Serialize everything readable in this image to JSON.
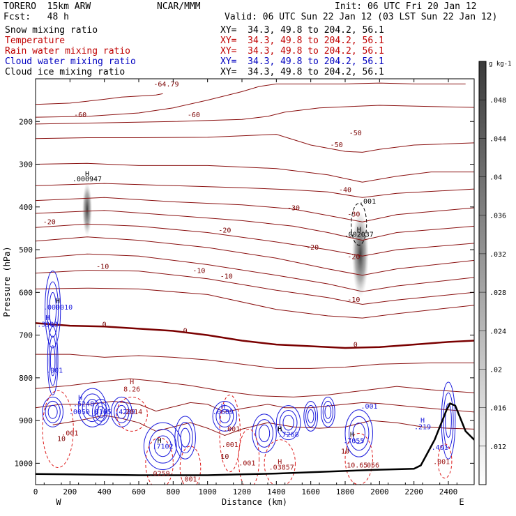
{
  "header": {
    "model": "TORERO  15km ARW",
    "forecast": "Fcst:   48 h",
    "center": "NCAR/MMM",
    "init": "Init: 06 UTC Fri 20 Jan 12",
    "valid": "Valid: 06 UTC Sun 22 Jan 12 (03 LST Sun 22 Jan 12)"
  },
  "fields": [
    {
      "name": "Snow mixing ratio",
      "color": "#000000",
      "xy": "XY=  34.3, 49.8 to 204.2, 56.1"
    },
    {
      "name": "Temperature",
      "color": "#c00000",
      "xy": "XY=  34.3, 49.8 to 204.2, 56.1"
    },
    {
      "name": "Rain water mixing ratio",
      "color": "#c00000",
      "xy": "XY=  34.3, 49.8 to 204.2, 56.1"
    },
    {
      "name": "Cloud water mixing ratio",
      "color": "#0000c0",
      "xy": "XY=  34.3, 49.8 to 204.2, 56.1"
    },
    {
      "name": "Cloud ice mixing ratio",
      "color": "#000000",
      "xy": "XY=  34.3, 49.8 to 204.2, 56.1"
    }
  ],
  "chart_data": {
    "type": "contour",
    "title": "",
    "xlabel": "Distance (km)",
    "ylabel": "Pressure (hPa)",
    "xlim": [
      0,
      2550
    ],
    "ylim": [
      1050,
      100
    ],
    "x_ticks": [
      0,
      200,
      400,
      600,
      800,
      1000,
      1200,
      1400,
      1600,
      1800,
      2000,
      2200,
      2400
    ],
    "y_ticks": [
      200,
      300,
      400,
      500,
      600,
      700,
      800,
      900,
      1000
    ],
    "west_label": "W",
    "east_label": "E",
    "colorbar": {
      "unit": "g kg-1",
      "ticks": [
        ".012",
        ".016",
        ".02",
        ".024",
        ".028",
        ".032",
        ".036",
        ".04",
        ".044",
        ".048"
      ]
    },
    "temperature_labels": [
      {
        "text": "-64.79",
        "x": 760,
        "p": 118
      },
      {
        "text": "-60",
        "x": 260,
        "p": 190
      },
      {
        "text": "-60",
        "x": 920,
        "p": 190
      },
      {
        "text": "-50",
        "x": 1860,
        "p": 232
      },
      {
        "text": "-50",
        "x": 1750,
        "p": 260
      },
      {
        "text": "-40",
        "x": 1800,
        "p": 365
      },
      {
        "text": "-30",
        "x": 1500,
        "p": 408
      },
      {
        "text": "-30",
        "x": 1850,
        "p": 422
      },
      {
        "text": "-20",
        "x": 80,
        "p": 440
      },
      {
        "text": "-20",
        "x": 1100,
        "p": 460
      },
      {
        "text": "-20",
        "x": 1610,
        "p": 500
      },
      {
        "text": "-20",
        "x": 1850,
        "p": 522
      },
      {
        "text": "-10",
        "x": 390,
        "p": 545
      },
      {
        "text": "-10",
        "x": 950,
        "p": 555
      },
      {
        "text": "-10",
        "x": 1110,
        "p": 568
      },
      {
        "text": "-10",
        "x": 1850,
        "p": 622
      },
      {
        "text": "0",
        "x": 400,
        "p": 680
      },
      {
        "text": "0",
        "x": 870,
        "p": 695
      },
      {
        "text": "0",
        "x": 1860,
        "p": 728
      },
      {
        "text": "10",
        "x": 150,
        "p": 948
      },
      {
        "text": "10",
        "x": 1100,
        "p": 990
      },
      {
        "text": "10",
        "x": 1800,
        "p": 977
      }
    ],
    "temperature_isotherms": [
      {
        "level": -60,
        "points": [
          [
            0,
            190
          ],
          [
            300,
            188
          ],
          [
            600,
            180
          ],
          [
            800,
            168
          ],
          [
            1000,
            150
          ],
          [
            1200,
            130
          ],
          [
            1300,
            118
          ],
          [
            1400,
            112
          ],
          [
            1600,
            112
          ],
          [
            1800,
            112
          ],
          [
            2000,
            110
          ],
          [
            2200,
            112
          ],
          [
            2500,
            112
          ]
        ]
      },
      {
        "level": -60,
        "points": [
          [
            0,
            160
          ],
          [
            200,
            157
          ],
          [
            400,
            148
          ],
          [
            500,
            143
          ],
          [
            620,
            140
          ],
          [
            700,
            138
          ],
          [
            740,
            135
          ]
        ]
      },
      {
        "level": -50,
        "points": [
          [
            0,
            206
          ],
          [
            400,
            203
          ],
          [
            800,
            200
          ],
          [
            1200,
            195
          ],
          [
            1350,
            188
          ],
          [
            1450,
            178
          ],
          [
            1650,
            168
          ],
          [
            2000,
            162
          ],
          [
            2300,
            165
          ],
          [
            2550,
            167
          ]
        ]
      },
      {
        "level": -50,
        "points": [
          [
            0,
            240
          ],
          [
            300,
            238
          ],
          [
            600,
            238
          ],
          [
            1000,
            237
          ],
          [
            1400,
            230
          ],
          [
            1600,
            255
          ],
          [
            1800,
            270
          ],
          [
            1900,
            272
          ],
          [
            2000,
            265
          ],
          [
            2200,
            255
          ],
          [
            2550,
            250
          ]
        ]
      },
      {
        "level": -40,
        "points": [
          [
            0,
            300
          ],
          [
            300,
            298
          ],
          [
            600,
            303
          ],
          [
            1000,
            303
          ],
          [
            1400,
            310
          ],
          [
            1700,
            325
          ],
          [
            1900,
            342
          ],
          [
            2100,
            328
          ],
          [
            2300,
            318
          ],
          [
            2550,
            318
          ]
        ]
      },
      {
        "level": -40,
        "points": [
          [
            0,
            350
          ],
          [
            400,
            345
          ],
          [
            800,
            350
          ],
          [
            1200,
            355
          ],
          [
            1500,
            360
          ],
          [
            1700,
            365
          ],
          [
            1900,
            378
          ],
          [
            2100,
            368
          ],
          [
            2550,
            358
          ]
        ]
      },
      {
        "level": -30,
        "points": [
          [
            0,
            385
          ],
          [
            400,
            378
          ],
          [
            800,
            388
          ],
          [
            1200,
            395
          ],
          [
            1500,
            405
          ],
          [
            1700,
            420
          ],
          [
            1900,
            435
          ],
          [
            2100,
            418
          ],
          [
            2550,
            402
          ]
        ]
      },
      {
        "level": -30,
        "points": [
          [
            0,
            415
          ],
          [
            400,
            408
          ],
          [
            800,
            420
          ],
          [
            1200,
            432
          ],
          [
            1500,
            445
          ],
          [
            1700,
            460
          ],
          [
            1900,
            478
          ],
          [
            2100,
            460
          ],
          [
            2550,
            445
          ]
        ]
      },
      {
        "level": -20,
        "points": [
          [
            0,
            448
          ],
          [
            300,
            440
          ],
          [
            600,
            445
          ],
          [
            1000,
            460
          ],
          [
            1400,
            482
          ],
          [
            1700,
            500
          ],
          [
            1900,
            515
          ],
          [
            2100,
            500
          ],
          [
            2550,
            485
          ]
        ]
      },
      {
        "level": -20,
        "points": [
          [
            0,
            480
          ],
          [
            300,
            470
          ],
          [
            600,
            478
          ],
          [
            1000,
            495
          ],
          [
            1400,
            520
          ],
          [
            1700,
            545
          ],
          [
            1900,
            560
          ],
          [
            2100,
            545
          ],
          [
            2550,
            525
          ]
        ]
      },
      {
        "level": -10,
        "points": [
          [
            0,
            520
          ],
          [
            300,
            510
          ],
          [
            600,
            515
          ],
          [
            1000,
            535
          ],
          [
            1400,
            560
          ],
          [
            1700,
            580
          ],
          [
            1900,
            598
          ],
          [
            2100,
            585
          ],
          [
            2550,
            565
          ]
        ]
      },
      {
        "level": -10,
        "points": [
          [
            0,
            555
          ],
          [
            300,
            548
          ],
          [
            600,
            550
          ],
          [
            1000,
            568
          ],
          [
            1400,
            595
          ],
          [
            1700,
            612
          ],
          [
            1900,
            628
          ],
          [
            2100,
            618
          ],
          [
            2550,
            600
          ]
        ]
      },
      {
        "level": -10,
        "points": [
          [
            0,
            592
          ],
          [
            300,
            590
          ],
          [
            600,
            592
          ],
          [
            1000,
            605
          ],
          [
            1400,
            640
          ],
          [
            1700,
            655
          ],
          [
            1900,
            660
          ],
          [
            2100,
            650
          ],
          [
            2550,
            630
          ]
        ]
      },
      {
        "level": 0,
        "points": [
          [
            0,
            672
          ],
          [
            200,
            678
          ],
          [
            400,
            680
          ],
          [
            600,
            685
          ],
          [
            800,
            690
          ],
          [
            1000,
            700
          ],
          [
            1200,
            713
          ],
          [
            1400,
            722
          ],
          [
            1600,
            726
          ],
          [
            1800,
            730
          ],
          [
            2000,
            728
          ],
          [
            2200,
            722
          ],
          [
            2400,
            716
          ],
          [
            2550,
            713
          ]
        ]
      },
      {
        "level": 5,
        "points": [
          [
            0,
            745
          ],
          [
            200,
            745
          ],
          [
            400,
            752
          ],
          [
            600,
            748
          ],
          [
            800,
            752
          ],
          [
            1000,
            758
          ],
          [
            1200,
            768
          ],
          [
            1400,
            778
          ],
          [
            1600,
            778
          ],
          [
            1800,
            775
          ],
          [
            2000,
            768
          ],
          [
            2300,
            765
          ],
          [
            2550,
            765
          ]
        ]
      },
      {
        "level": 10,
        "points": [
          [
            0,
            825
          ],
          [
            200,
            818
          ],
          [
            400,
            808
          ],
          [
            550,
            802
          ],
          [
            700,
            808
          ],
          [
            900,
            818
          ],
          [
            1100,
            832
          ],
          [
            1300,
            842
          ],
          [
            1500,
            845
          ],
          [
            1700,
            840
          ],
          [
            1900,
            830
          ],
          [
            2100,
            820
          ],
          [
            2300,
            828
          ],
          [
            2550,
            835
          ]
        ]
      },
      {
        "level": 15,
        "points": [
          [
            0,
            870
          ],
          [
            150,
            862
          ],
          [
            300,
            862
          ],
          [
            450,
            855
          ],
          [
            600,
            862
          ],
          [
            700,
            878
          ],
          [
            800,
            868
          ],
          [
            900,
            858
          ],
          [
            1000,
            862
          ],
          [
            1100,
            880
          ],
          [
            1200,
            872
          ],
          [
            1350,
            862
          ],
          [
            1450,
            870
          ],
          [
            1600,
            870
          ],
          [
            1800,
            862
          ],
          [
            1900,
            858
          ],
          [
            2000,
            860
          ],
          [
            2200,
            868
          ],
          [
            2400,
            875
          ],
          [
            2550,
            880
          ]
        ]
      },
      {
        "level": 20,
        "points": [
          [
            100,
            910
          ],
          [
            250,
            900
          ],
          [
            400,
            888
          ],
          [
            500,
            895
          ],
          [
            600,
            905
          ],
          [
            700,
            925
          ],
          [
            800,
            915
          ],
          [
            900,
            905
          ],
          [
            1000,
            918
          ],
          [
            1100,
            935
          ],
          [
            1200,
            920
          ],
          [
            1350,
            905
          ],
          [
            1500,
            915
          ],
          [
            1650,
            918
          ],
          [
            1800,
            915
          ],
          [
            1950,
            900
          ],
          [
            2100,
            905
          ],
          [
            2250,
            915
          ],
          [
            2400,
            918
          ],
          [
            2550,
            920
          ]
        ]
      }
    ],
    "ice_maxima": [
      {
        "label": ".000947",
        "x": 300,
        "p": 340
      },
      {
        "label": ".002037",
        "x": 1880,
        "p": 470
      }
    ],
    "ice_contour_labels": [
      {
        "text": ".001",
        "x": 1930,
        "p": 392
      }
    ],
    "cloud_water_labels": [
      {
        "text": ".000010",
        "x": 130,
        "p": 640
      },
      {
        "text": ".3303",
        "x": 70,
        "p": 680
      },
      {
        "text": ".001",
        "x": 110,
        "p": 788
      },
      {
        "text": ".5248",
        "x": 280,
        "p": 866
      },
      {
        "text": ".0050",
        "x": 255,
        "p": 885
      },
      {
        "text": ".6105",
        "x": 380,
        "p": 885
      },
      {
        "text": ".4209",
        "x": 520,
        "p": 885
      },
      {
        "text": ".7102",
        "x": 740,
        "p": 966
      },
      {
        "text": ".6689",
        "x": 1090,
        "p": 885
      },
      {
        "text": ".7268",
        "x": 1470,
        "p": 938
      },
      {
        "text": ".7055",
        "x": 1850,
        "p": 953
      },
      {
        "text": ".001",
        "x": 1940,
        "p": 872
      },
      {
        "text": ".219",
        "x": 2250,
        "p": 920
      },
      {
        "text": ".401",
        "x": 2350,
        "p": 968
      }
    ],
    "rain_labels": [
      {
        "text": "8.26",
        "x": 560,
        "p": 832
      },
      {
        "text": ".001",
        "x": 200,
        "p": 935
      },
      {
        "text": ".2014",
        "x": 560,
        "p": 885
      },
      {
        "text": ".001",
        "x": 1140,
        "p": 925
      },
      {
        "text": ".001",
        "x": 1130,
        "p": 962
      },
      {
        "text": ".0259",
        "x": 720,
        "p": 1030
      },
      {
        "text": ".001",
        "x": 890,
        "p": 1043
      },
      {
        "text": ".001",
        "x": 1230,
        "p": 1005
      },
      {
        "text": ".03857",
        "x": 1430,
        "p": 1015
      },
      {
        "text": ".001",
        "x": 2360,
        "p": 1002
      },
      {
        "text": "10.65",
        "x": 1870,
        "p": 1010
      },
      {
        "text": ".056",
        "x": 1950,
        "p": 1010
      }
    ],
    "terrain": [
      [
        0,
        1025
      ],
      [
        200,
        1026
      ],
      [
        400,
        1027
      ],
      [
        600,
        1028
      ],
      [
        800,
        1028
      ],
      [
        1000,
        1028
      ],
      [
        1200,
        1026
      ],
      [
        1400,
        1024
      ],
      [
        1600,
        1021
      ],
      [
        1800,
        1018
      ],
      [
        2000,
        1015
      ],
      [
        2200,
        1013
      ],
      [
        2240,
        1005
      ],
      [
        2280,
        975
      ],
      [
        2320,
        945
      ],
      [
        2360,
        905
      ],
      [
        2390,
        875
      ],
      [
        2410,
        860
      ],
      [
        2440,
        865
      ],
      [
        2470,
        895
      ],
      [
        2500,
        925
      ],
      [
        2525,
        935
      ],
      [
        2550,
        945
      ]
    ]
  }
}
